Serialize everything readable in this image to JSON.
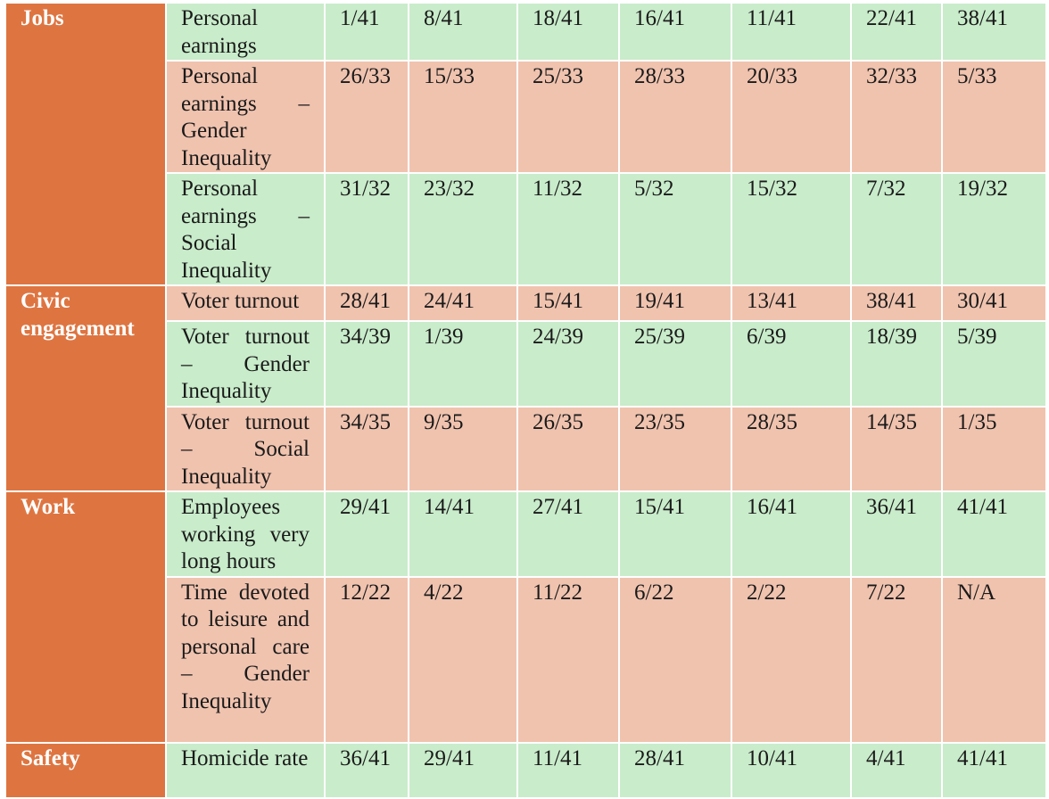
{
  "colors": {
    "category_bg": "#de7541",
    "row_green": "#c9eccb",
    "row_pink": "#f0c3af"
  },
  "rows": [
    {
      "indicator": "Personal earnings",
      "values": [
        "1/41",
        "8/41",
        "18/41",
        "16/41",
        "11/41",
        "22/41",
        "38/41"
      ]
    },
    {
      "indicator": "Personal earnings – Gender Inequality",
      "values": [
        "26/33",
        "15/33",
        "25/33",
        "28/33",
        "20/33",
        "32/33",
        "5/33"
      ]
    },
    {
      "indicator": "Personal earnings – Social Inequality",
      "values": [
        "31/32",
        "23/32",
        "11/32",
        "5/32",
        "15/32",
        "7/32",
        "19/32"
      ]
    },
    {
      "indicator": "Voter turnout",
      "values": [
        "28/41",
        "24/41",
        "15/41",
        "19/41",
        "13/41",
        "38/41",
        "30/41"
      ]
    },
    {
      "indicator": "Voter turnout – Gender Inequality",
      "values": [
        "34/39",
        "1/39",
        "24/39",
        "25/39",
        "6/39",
        "18/39",
        "5/39"
      ]
    },
    {
      "indicator": "Voter turnout – Social Inequality",
      "values": [
        "34/35",
        "9/35",
        "26/35",
        "23/35",
        "28/35",
        "14/35",
        "1/35"
      ]
    },
    {
      "indicator": "Employees working very long hours",
      "values": [
        "29/41",
        "14/41",
        "27/41",
        "15/41",
        "16/41",
        "36/41",
        "41/41"
      ]
    },
    {
      "indicator": "Time devoted to leisure and personal care – Gender Inequality",
      "values": [
        "12/22",
        "4/22",
        "11/22",
        "6/22",
        "2/22",
        "7/22",
        "N/A"
      ]
    },
    {
      "indicator": "Homicide rate",
      "values": [
        "36/41",
        "29/41",
        "11/41",
        "28/41",
        "10/41",
        "4/41",
        "41/41"
      ]
    }
  ],
  "categories": {
    "jobs": "Jobs",
    "civic": "Civic engagement",
    "work": "Work",
    "safety": "Safety"
  }
}
